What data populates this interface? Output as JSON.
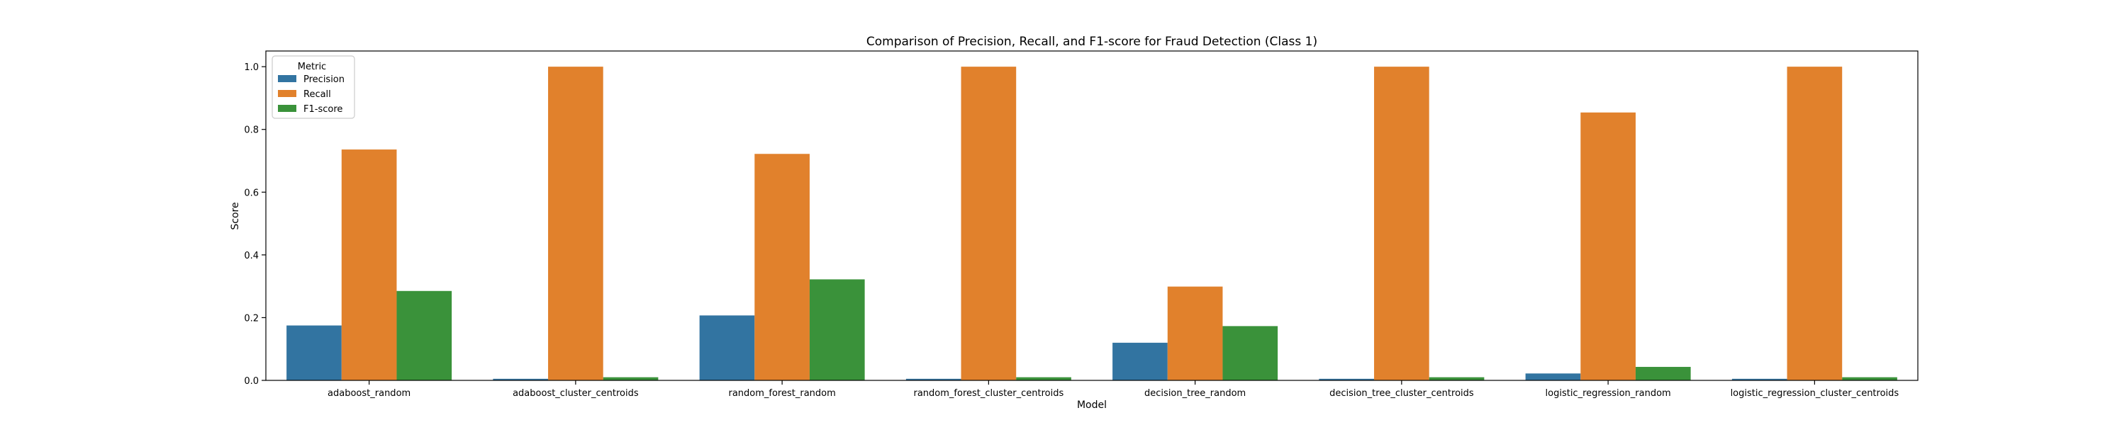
{
  "chart_data": {
    "type": "bar",
    "title": "Comparison of Precision, Recall, and F1-score for Fraud Detection (Class 1)",
    "xlabel": "Model",
    "ylabel": "Score",
    "ylim": [
      0,
      1.05
    ],
    "yticks": [
      "0.0",
      "0.2",
      "0.4",
      "0.6",
      "0.8",
      "1.0"
    ],
    "grid": false,
    "legend": {
      "title": "Metric",
      "placement": "top-left"
    },
    "categories": [
      "adaboost_random",
      "adaboost_cluster_centroids",
      "random_forest_random",
      "random_forest_cluster_centroids",
      "decision_tree_random",
      "decision_tree_cluster_centroids",
      "logistic_regression_random",
      "logistic_regression_cluster_centroids"
    ],
    "series": [
      {
        "name": "Precision",
        "color": "#3274a1",
        "values": [
          0.175,
          0.005,
          0.207,
          0.005,
          0.12,
          0.005,
          0.022,
          0.005
        ]
      },
      {
        "name": "Recall",
        "color": "#e1812c",
        "values": [
          0.736,
          1.0,
          0.722,
          1.0,
          0.299,
          1.0,
          0.854,
          1.0
        ]
      },
      {
        "name": "F1-score",
        "color": "#3a923a",
        "values": [
          0.285,
          0.01,
          0.322,
          0.01,
          0.173,
          0.01,
          0.043,
          0.01
        ]
      }
    ]
  }
}
